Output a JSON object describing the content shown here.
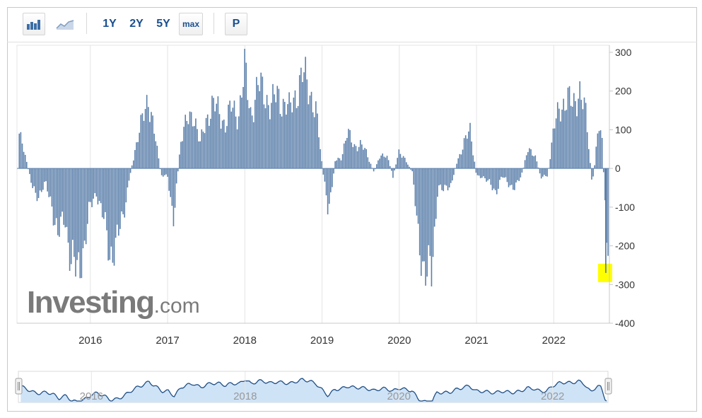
{
  "toolbar": {
    "bar_chart_icon": "bar-chart-icon",
    "line_chart_icon": "line-chart-icon",
    "ranges": [
      "1Y",
      "2Y",
      "5Y",
      "max"
    ],
    "p_label": "P"
  },
  "watermark": {
    "brand": "Investing",
    "suffix": ".com"
  },
  "colors": {
    "bar": "#5b7faa",
    "highlight": "#ffff00",
    "nav_fill": "#cfe3f7",
    "nav_line": "#1f4f85"
  },
  "chart_data": {
    "type": "bar",
    "title": "",
    "xlabel": "",
    "ylabel": "",
    "ylim": [
      -400,
      300
    ],
    "y_ticks": [
      300,
      200,
      100,
      0,
      -100,
      -200,
      -300,
      -400
    ],
    "x_ticks": [
      "2016",
      "2017",
      "2018",
      "2019",
      "2020",
      "2021",
      "2022"
    ],
    "x_range_years": [
      2015.05,
      2022.72
    ],
    "grid": "vertical",
    "last_value": -270,
    "series": [
      {
        "values": [
          {
            "x": 2015.08,
            "y": 90
          },
          {
            "x": 2015.17,
            "y": 20
          },
          {
            "x": 2015.25,
            "y": -50
          },
          {
            "x": 2015.33,
            "y": -70
          },
          {
            "x": 2015.42,
            "y": -40
          },
          {
            "x": 2015.5,
            "y": -90
          },
          {
            "x": 2015.58,
            "y": -180
          },
          {
            "x": 2015.67,
            "y": -120
          },
          {
            "x": 2015.75,
            "y": -240
          },
          {
            "x": 2015.83,
            "y": -270
          },
          {
            "x": 2015.92,
            "y": -200
          },
          {
            "x": 2016.0,
            "y": -100
          },
          {
            "x": 2016.08,
            "y": -60
          },
          {
            "x": 2016.17,
            "y": -130
          },
          {
            "x": 2016.25,
            "y": -220
          },
          {
            "x": 2016.33,
            "y": -200
          },
          {
            "x": 2016.42,
            "y": -130
          },
          {
            "x": 2016.5,
            "y": -30
          },
          {
            "x": 2016.58,
            "y": 50
          },
          {
            "x": 2016.67,
            "y": 120
          },
          {
            "x": 2016.75,
            "y": 190
          },
          {
            "x": 2016.83,
            "y": 90
          },
          {
            "x": 2016.92,
            "y": -20
          },
          {
            "x": 2017.0,
            "y": -20
          },
          {
            "x": 2017.08,
            "y": -130
          },
          {
            "x": 2017.17,
            "y": 70
          },
          {
            "x": 2017.25,
            "y": 120
          },
          {
            "x": 2017.33,
            "y": 150
          },
          {
            "x": 2017.42,
            "y": 60
          },
          {
            "x": 2017.5,
            "y": 130
          },
          {
            "x": 2017.58,
            "y": 160
          },
          {
            "x": 2017.67,
            "y": 150
          },
          {
            "x": 2017.75,
            "y": 110
          },
          {
            "x": 2017.83,
            "y": 160
          },
          {
            "x": 2017.92,
            "y": 140
          },
          {
            "x": 2018.0,
            "y": 250
          },
          {
            "x": 2018.08,
            "y": 140
          },
          {
            "x": 2018.17,
            "y": 210
          },
          {
            "x": 2018.25,
            "y": 200
          },
          {
            "x": 2018.33,
            "y": 160
          },
          {
            "x": 2018.42,
            "y": 190
          },
          {
            "x": 2018.5,
            "y": 170
          },
          {
            "x": 2018.58,
            "y": 150
          },
          {
            "x": 2018.67,
            "y": 200
          },
          {
            "x": 2018.75,
            "y": 240
          },
          {
            "x": 2018.83,
            "y": 210
          },
          {
            "x": 2018.92,
            "y": 150
          },
          {
            "x": 2019.0,
            "y": 10
          },
          {
            "x": 2019.08,
            "y": -120
          },
          {
            "x": 2019.17,
            "y": 20
          },
          {
            "x": 2019.25,
            "y": 30
          },
          {
            "x": 2019.33,
            "y": 90
          },
          {
            "x": 2019.42,
            "y": 60
          },
          {
            "x": 2019.5,
            "y": 60
          },
          {
            "x": 2019.58,
            "y": 40
          },
          {
            "x": 2019.67,
            "y": -10
          },
          {
            "x": 2019.75,
            "y": 30
          },
          {
            "x": 2019.83,
            "y": 40
          },
          {
            "x": 2019.92,
            "y": -20
          },
          {
            "x": 2020.0,
            "y": 50
          },
          {
            "x": 2020.08,
            "y": 20
          },
          {
            "x": 2020.17,
            "y": -10
          },
          {
            "x": 2020.25,
            "y": -190
          },
          {
            "x": 2020.33,
            "y": -260
          },
          {
            "x": 2020.42,
            "y": -280
          },
          {
            "x": 2020.5,
            "y": -40
          },
          {
            "x": 2020.58,
            "y": -60
          },
          {
            "x": 2020.67,
            "y": -40
          },
          {
            "x": 2020.75,
            "y": 20
          },
          {
            "x": 2020.83,
            "y": 60
          },
          {
            "x": 2020.92,
            "y": 100
          },
          {
            "x": 2021.0,
            "y": -20
          },
          {
            "x": 2021.08,
            "y": -20
          },
          {
            "x": 2021.17,
            "y": -40
          },
          {
            "x": 2021.25,
            "y": -60
          },
          {
            "x": 2021.33,
            "y": -20
          },
          {
            "x": 2021.42,
            "y": -40
          },
          {
            "x": 2021.5,
            "y": -50
          },
          {
            "x": 2021.58,
            "y": -20
          },
          {
            "x": 2021.67,
            "y": 50
          },
          {
            "x": 2021.75,
            "y": 40
          },
          {
            "x": 2021.83,
            "y": -20
          },
          {
            "x": 2021.92,
            "y": -20
          },
          {
            "x": 2022.0,
            "y": 100
          },
          {
            "x": 2022.08,
            "y": 160
          },
          {
            "x": 2022.17,
            "y": 180
          },
          {
            "x": 2022.25,
            "y": 160
          },
          {
            "x": 2022.33,
            "y": 210
          },
          {
            "x": 2022.42,
            "y": 130
          },
          {
            "x": 2022.5,
            "y": -50
          },
          {
            "x": 2022.58,
            "y": 110
          },
          {
            "x": 2022.63,
            "y": 60
          },
          {
            "x": 2022.68,
            "y": -180
          },
          {
            "x": 2022.72,
            "y": -270
          }
        ]
      }
    ],
    "navigator": {
      "x_ticks": [
        "2016",
        "2018",
        "2020",
        "2022"
      ]
    }
  }
}
